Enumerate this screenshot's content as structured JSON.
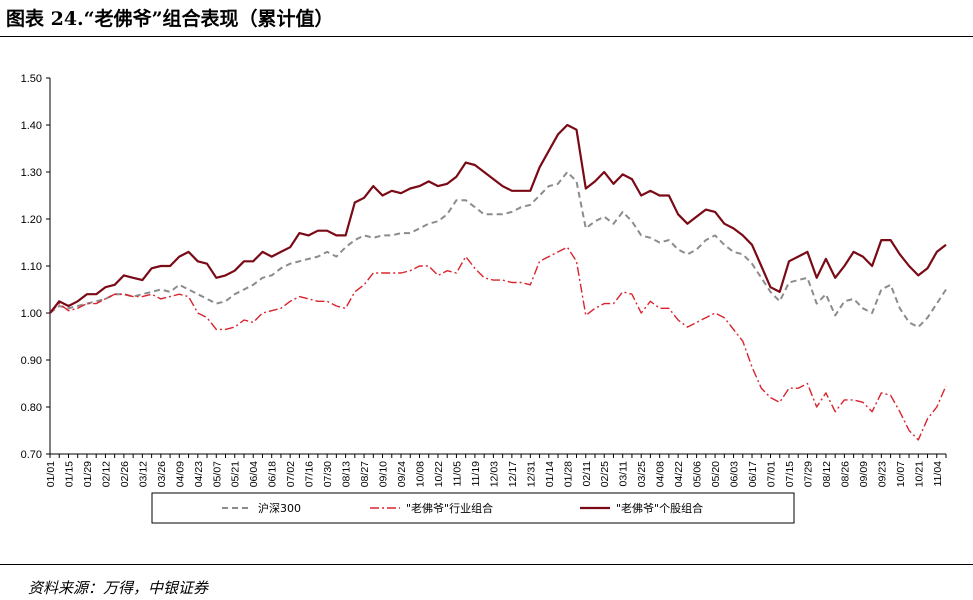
{
  "title": "图表 24.“老佛爷”组合表现（累计值）",
  "source": "资料来源：万得，中银证券",
  "chart_data": {
    "type": "line",
    "ylim": [
      0.7,
      1.5
    ],
    "yticks": [
      "1.50",
      "1.40",
      "1.30",
      "1.20",
      "1.10",
      "1.00",
      "0.90",
      "0.80",
      "0.70"
    ],
    "x": [
      "01/01",
      "01/08",
      "01/15",
      "01/22",
      "01/29",
      "02/05",
      "02/12",
      "02/19",
      "02/26",
      "03/05",
      "03/12",
      "03/19",
      "03/26",
      "04/02",
      "04/09",
      "04/16",
      "04/23",
      "04/30",
      "05/07",
      "05/14",
      "05/21",
      "05/28",
      "06/04",
      "06/11",
      "06/18",
      "06/25",
      "07/02",
      "07/09",
      "07/16",
      "07/23",
      "07/30",
      "08/06",
      "08/13",
      "08/20",
      "08/27",
      "09/03",
      "09/10",
      "09/17",
      "09/24",
      "10/01",
      "10/08",
      "10/15",
      "10/22",
      "10/29",
      "11/05",
      "11/12",
      "11/19",
      "11/26",
      "12/03",
      "12/10",
      "12/17",
      "12/24",
      "12/31",
      "01/07",
      "01/14",
      "01/21",
      "01/28",
      "02/04",
      "02/11",
      "02/18",
      "02/25",
      "03/04",
      "03/11",
      "03/18",
      "03/25",
      "04/01",
      "04/08",
      "04/15",
      "04/22",
      "04/29",
      "05/06",
      "05/13",
      "05/20",
      "05/27",
      "06/03",
      "06/10",
      "06/17",
      "06/24",
      "07/01",
      "07/08",
      "07/15",
      "07/22",
      "07/29",
      "08/05",
      "08/12",
      "08/19",
      "08/26",
      "09/02",
      "09/09",
      "09/16",
      "09/23",
      "09/30",
      "10/07",
      "10/14",
      "10/21",
      "10/28",
      "11/04",
      "11/11"
    ],
    "xtick_labels": [
      "01/01",
      "01/15",
      "01/29",
      "02/12",
      "02/26",
      "03/12",
      "03/26",
      "04/09",
      "04/23",
      "05/07",
      "05/21",
      "06/04",
      "06/18",
      "07/02",
      "07/16",
      "07/30",
      "08/13",
      "08/27",
      "09/10",
      "09/24",
      "10/08",
      "10/22",
      "11/05",
      "11/19",
      "12/03",
      "12/17",
      "12/31",
      "01/14",
      "01/28",
      "02/11",
      "02/25",
      "03/11",
      "03/25",
      "04/08",
      "04/22",
      "05/06",
      "05/20",
      "06/03",
      "06/17",
      "07/01",
      "07/15",
      "07/29",
      "08/12",
      "08/26",
      "09/09",
      "09/23",
      "10/07",
      "10/21",
      "11/04"
    ],
    "series": [
      {
        "name": "沪深300",
        "color": "#8c8c8c",
        "style": "dashed",
        "values": [
          1.0,
          1.015,
          1.01,
          1.015,
          1.02,
          1.025,
          1.03,
          1.04,
          1.04,
          1.035,
          1.04,
          1.045,
          1.05,
          1.045,
          1.06,
          1.05,
          1.04,
          1.03,
          1.02,
          1.025,
          1.04,
          1.05,
          1.06,
          1.075,
          1.08,
          1.095,
          1.105,
          1.11,
          1.115,
          1.12,
          1.13,
          1.12,
          1.14,
          1.155,
          1.165,
          1.16,
          1.165,
          1.165,
          1.17,
          1.17,
          1.18,
          1.19,
          1.195,
          1.21,
          1.24,
          1.24,
          1.225,
          1.21,
          1.21,
          1.21,
          1.215,
          1.225,
          1.23,
          1.25,
          1.27,
          1.275,
          1.3,
          1.28,
          1.18,
          1.195,
          1.205,
          1.19,
          1.215,
          1.195,
          1.165,
          1.16,
          1.15,
          1.155,
          1.135,
          1.125,
          1.135,
          1.155,
          1.165,
          1.145,
          1.13,
          1.125,
          1.105,
          1.075,
          1.045,
          1.025,
          1.065,
          1.07,
          1.075,
          1.02,
          1.04,
          0.995,
          1.025,
          1.03,
          1.01,
          1.0,
          1.05,
          1.06,
          1.01,
          0.98,
          0.97,
          0.99,
          1.02,
          1.05
        ]
      },
      {
        "name": "\"老佛爷\"行业组合",
        "color": "#d9232e",
        "style": "dashdot",
        "values": [
          1.0,
          1.02,
          1.005,
          1.01,
          1.02,
          1.02,
          1.03,
          1.04,
          1.04,
          1.035,
          1.035,
          1.04,
          1.03,
          1.035,
          1.04,
          1.035,
          1.0,
          0.99,
          0.965,
          0.965,
          0.97,
          0.985,
          0.98,
          1.0,
          1.005,
          1.01,
          1.025,
          1.035,
          1.03,
          1.025,
          1.025,
          1.015,
          1.01,
          1.045,
          1.06,
          1.085,
          1.085,
          1.085,
          1.085,
          1.09,
          1.1,
          1.1,
          1.08,
          1.09,
          1.085,
          1.12,
          1.095,
          1.075,
          1.07,
          1.07,
          1.065,
          1.065,
          1.06,
          1.11,
          1.12,
          1.13,
          1.14,
          1.11,
          0.995,
          1.01,
          1.02,
          1.02,
          1.045,
          1.04,
          1.0,
          1.025,
          1.01,
          1.01,
          0.985,
          0.97,
          0.98,
          0.99,
          1.0,
          0.99,
          0.965,
          0.94,
          0.885,
          0.84,
          0.82,
          0.81,
          0.84,
          0.84,
          0.85,
          0.8,
          0.83,
          0.79,
          0.815,
          0.815,
          0.81,
          0.79,
          0.83,
          0.825,
          0.79,
          0.75,
          0.73,
          0.775,
          0.8,
          0.845
        ]
      },
      {
        "name": "\"老佛爷\"个股组合",
        "color": "#7a0a16",
        "style": "solid",
        "values": [
          1.0,
          1.025,
          1.015,
          1.025,
          1.04,
          1.04,
          1.055,
          1.06,
          1.08,
          1.075,
          1.07,
          1.095,
          1.1,
          1.1,
          1.12,
          1.13,
          1.11,
          1.105,
          1.075,
          1.08,
          1.09,
          1.11,
          1.11,
          1.13,
          1.12,
          1.13,
          1.14,
          1.17,
          1.165,
          1.175,
          1.175,
          1.165,
          1.165,
          1.235,
          1.245,
          1.27,
          1.25,
          1.26,
          1.255,
          1.265,
          1.27,
          1.28,
          1.27,
          1.275,
          1.29,
          1.32,
          1.315,
          1.3,
          1.285,
          1.27,
          1.26,
          1.26,
          1.26,
          1.31,
          1.345,
          1.38,
          1.4,
          1.39,
          1.265,
          1.28,
          1.3,
          1.275,
          1.295,
          1.285,
          1.25,
          1.26,
          1.25,
          1.25,
          1.21,
          1.19,
          1.205,
          1.22,
          1.215,
          1.19,
          1.18,
          1.165,
          1.145,
          1.1,
          1.055,
          1.045,
          1.11,
          1.12,
          1.13,
          1.075,
          1.115,
          1.075,
          1.1,
          1.13,
          1.12,
          1.1,
          1.155,
          1.155,
          1.125,
          1.1,
          1.08,
          1.095,
          1.13,
          1.145
        ]
      }
    ]
  }
}
